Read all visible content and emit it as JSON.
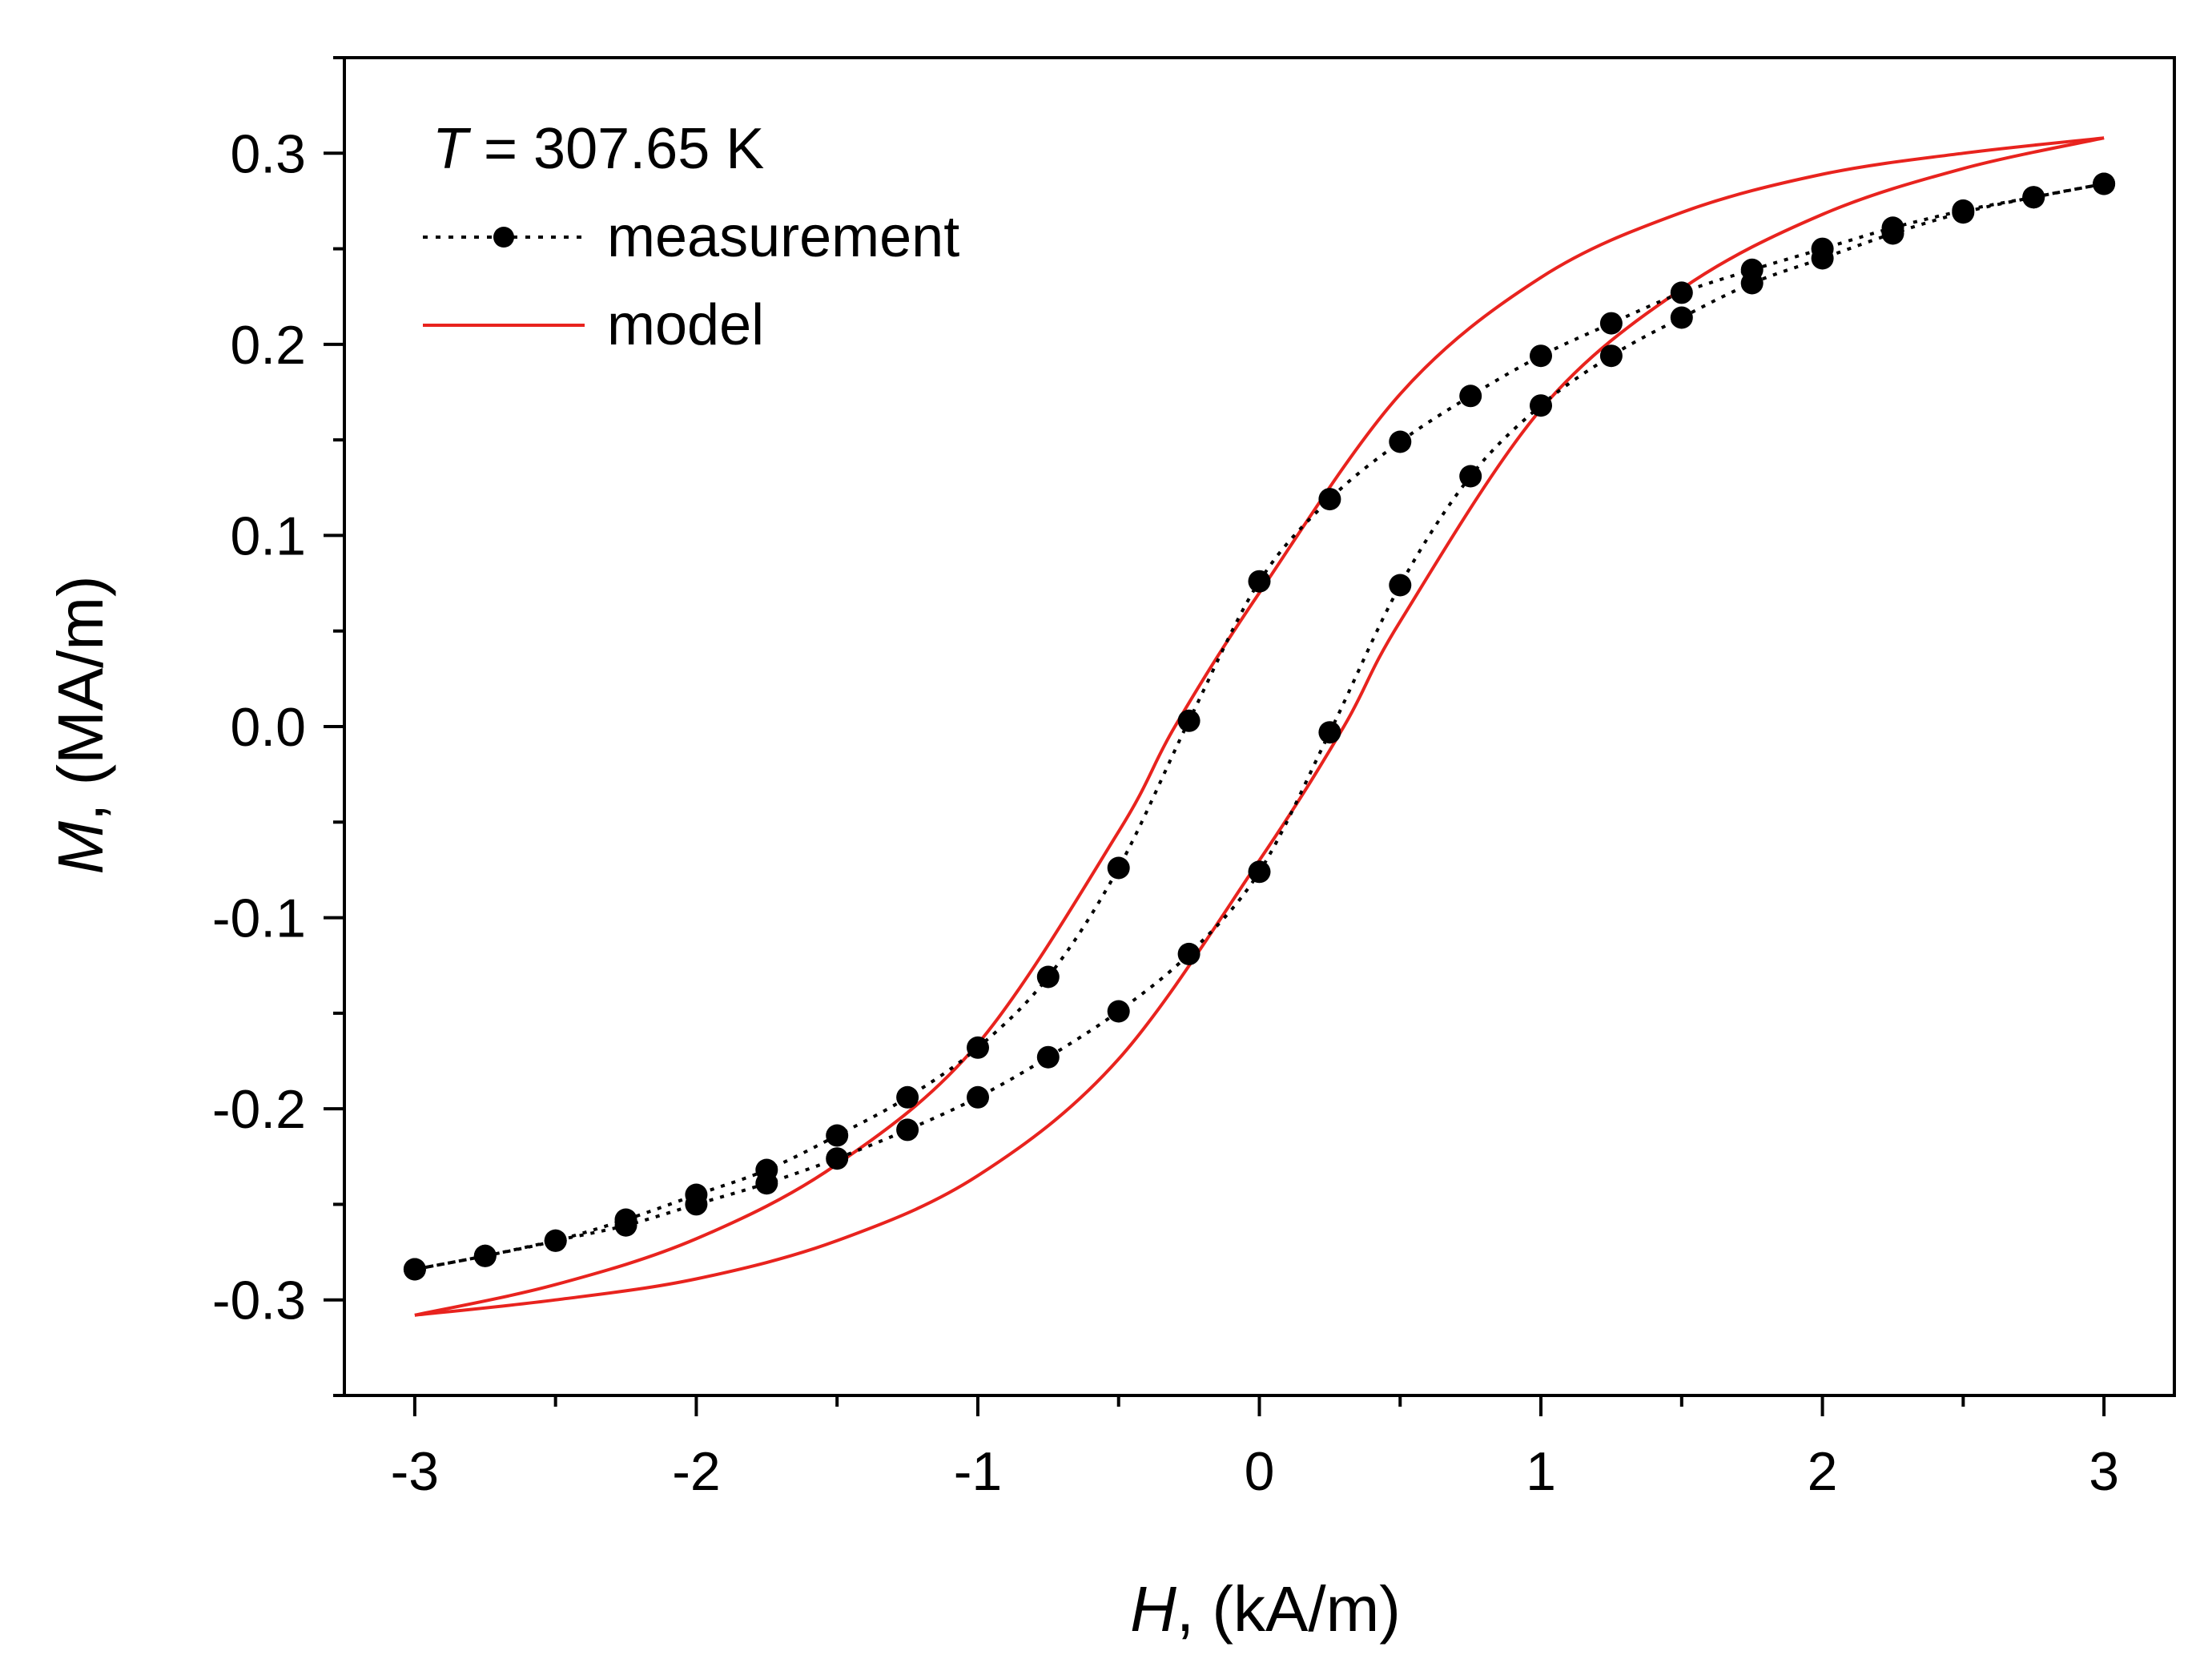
{
  "chart_data": {
    "type": "line",
    "annotation": {
      "symbol": "T",
      "text": " = 307.65 K"
    },
    "xlabel": {
      "symbol": "H",
      "unit": ", (kA/m)"
    },
    "ylabel": {
      "symbol": "M",
      "unit": ", (MA/m)"
    },
    "xlim": [
      -3.25,
      3.25
    ],
    "ylim": [
      -0.35,
      0.35
    ],
    "xticks": [
      -3,
      -2,
      -1,
      0,
      1,
      2,
      3
    ],
    "xtick_labels": [
      "-3",
      "-2",
      "-1",
      "0",
      "1",
      "2",
      "3"
    ],
    "yticks": [
      -0.3,
      -0.2,
      -0.1,
      0.0,
      0.1,
      0.2,
      0.3
    ],
    "ytick_labels": [
      "-0.3",
      "-0.2",
      "-0.1",
      "0.0",
      "0.1",
      "0.2",
      "0.3"
    ],
    "grid": false,
    "legend": {
      "position": "top-left",
      "entries": [
        {
          "label": "measurement",
          "style": "dotted-black-with-dots",
          "color": "#000000"
        },
        {
          "label": "model",
          "style": "solid-red",
          "color": "#e8231e"
        }
      ]
    },
    "series": [
      {
        "name": "measurement (descending branch)",
        "color": "#000000",
        "x": [
          3,
          2.75,
          2.5,
          2.25,
          2,
          1.75,
          1.5,
          1.25,
          1,
          0.75,
          0.5,
          0.25,
          0,
          -0.25,
          -0.5,
          -0.75,
          -1,
          -1.25,
          -1.5,
          -1.75,
          -2,
          -2.25,
          -2.5,
          -2.75,
          -3
        ],
        "y": [
          0.284,
          0.277,
          0.27,
          0.261,
          0.25,
          0.239,
          0.227,
          0.211,
          0.194,
          0.173,
          0.149,
          0.119,
          0.076,
          0.003,
          -0.074,
          -0.131,
          -0.168,
          -0.194,
          -0.214,
          -0.232,
          -0.245,
          -0.258,
          -0.269,
          -0.277,
          -0.284
        ]
      },
      {
        "name": "measurement (ascending branch)",
        "color": "#000000",
        "x": [
          -3,
          -2.75,
          -2.5,
          -2.25,
          -2,
          -1.75,
          -1.5,
          -1.25,
          -1,
          -0.75,
          -0.5,
          -0.25,
          0,
          0.25,
          0.5,
          0.75,
          1,
          1.25,
          1.5,
          1.75,
          2,
          2.25,
          2.5,
          2.75,
          3
        ],
        "y": [
          -0.284,
          -0.277,
          -0.269,
          -0.261,
          -0.25,
          -0.239,
          -0.226,
          -0.211,
          -0.194,
          -0.173,
          -0.149,
          -0.119,
          -0.076,
          -0.003,
          0.074,
          0.131,
          0.168,
          0.194,
          0.214,
          0.232,
          0.245,
          0.258,
          0.269,
          0.277,
          0.284
        ]
      },
      {
        "name": "model (descending branch)",
        "color": "#e8231e",
        "x": [
          3,
          2.5,
          2,
          1.5,
          1,
          0.5,
          0,
          -0.3,
          -0.5,
          -1,
          -1.5,
          -2,
          -2.5,
          -3
        ],
        "y": [
          0.308,
          0.3,
          0.289,
          0.269,
          0.235,
          0.174,
          0.07,
          0.0,
          -0.055,
          -0.166,
          -0.229,
          -0.268,
          -0.292,
          -0.308
        ]
      },
      {
        "name": "model (ascending branch)",
        "color": "#e8231e",
        "x": [
          -3,
          -2.5,
          -2,
          -1.5,
          -1,
          -0.5,
          0,
          0.3,
          0.5,
          1,
          1.5,
          2,
          2.5,
          3
        ],
        "y": [
          -0.308,
          -0.3,
          -0.289,
          -0.269,
          -0.235,
          -0.174,
          -0.07,
          0.0,
          0.055,
          0.166,
          0.229,
          0.268,
          0.292,
          0.308
        ]
      }
    ]
  }
}
